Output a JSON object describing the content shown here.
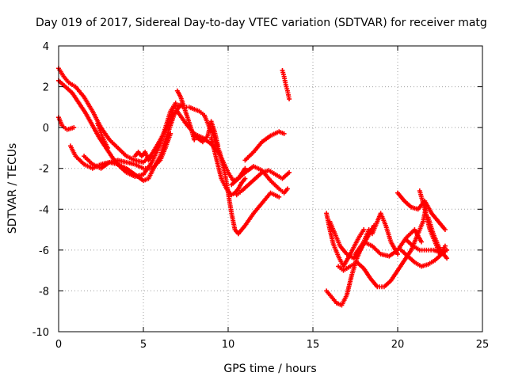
{
  "chart_data": {
    "type": "scatter",
    "title": "Day 019 of 2017, Sidereal Day-to-day VTEC variation (SDTVAR) for receiver matg",
    "xlabel": "GPS time / hours",
    "ylabel": "SDTVAR / TECUs",
    "xlim": [
      0,
      25
    ],
    "ylim": [
      -10,
      4
    ],
    "xticks": [
      "0",
      "5",
      "10",
      "15",
      "20",
      "25"
    ],
    "yticks": [
      "4",
      "2",
      "0",
      "-2",
      "-4",
      "-6",
      "-8",
      "-10"
    ],
    "grid": true,
    "marker": "plus",
    "color": "#ff0000",
    "series": [
      {
        "x": [
          0.0,
          0.3,
          0.6,
          1.0,
          1.5,
          2.0,
          2.5,
          3.0,
          3.5,
          4.0,
          4.5,
          5.0,
          5.5,
          6.0,
          6.5,
          6.8,
          7.0
        ],
        "y": [
          2.9,
          2.5,
          2.2,
          2.0,
          1.5,
          0.8,
          0.0,
          -0.6,
          -1.0,
          -1.4,
          -1.6,
          -1.7,
          -1.3,
          -0.6,
          0.2,
          1.0,
          1.1
        ]
      },
      {
        "x": [
          0.0,
          0.4,
          0.8,
          1.2,
          1.6,
          2.0,
          2.4,
          2.8,
          3.2,
          3.6,
          4.0,
          4.5,
          5.0,
          5.5,
          6.0,
          6.3,
          6.6,
          6.9
        ],
        "y": [
          2.3,
          2.0,
          1.7,
          1.2,
          0.7,
          0.1,
          -0.5,
          -1.0,
          -1.5,
          -1.9,
          -2.2,
          -2.4,
          -2.3,
          -1.7,
          -0.8,
          0.0,
          0.8,
          1.2
        ]
      },
      {
        "x": [
          0.0,
          0.2,
          0.5,
          0.9
        ],
        "y": [
          0.5,
          0.1,
          -0.1,
          0.0
        ]
      },
      {
        "x": [
          0.7,
          1.0,
          1.5,
          2.0,
          2.5,
          3.0,
          3.5,
          4.0,
          4.5,
          5.0,
          5.3,
          5.6,
          6.0,
          6.3,
          6.6,
          6.8,
          7.0,
          7.2
        ],
        "y": [
          -0.9,
          -1.4,
          -1.8,
          -2.0,
          -1.8,
          -1.7,
          -1.8,
          -2.0,
          -2.3,
          -2.6,
          -2.5,
          -2.0,
          -1.4,
          -0.6,
          0.1,
          0.6,
          0.9,
          1.1
        ]
      },
      {
        "x": [
          1.5,
          2.0,
          2.5,
          3.0,
          3.5,
          4.0,
          4.5,
          5.0,
          5.5,
          6.0,
          6.3,
          6.6
        ],
        "y": [
          -1.4,
          -1.8,
          -2.0,
          -1.7,
          -1.6,
          -1.7,
          -1.8,
          -2.0,
          -2.0,
          -1.6,
          -1.0,
          -0.3
        ]
      },
      {
        "x": [
          2.3,
          2.6,
          2.9
        ],
        "y": [
          0.2,
          -0.5,
          -1.0
        ]
      },
      {
        "x": [
          4.5,
          4.7,
          4.9,
          5.1,
          5.3,
          5.5
        ],
        "y": [
          -1.4,
          -1.2,
          -1.4,
          -1.2,
          -1.6,
          -1.4
        ]
      },
      {
        "x": [
          7.0,
          7.5,
          8.0,
          8.5,
          9.0,
          9.5,
          10.0,
          10.3,
          10.6,
          11.0
        ],
        "y": [
          0.8,
          0.2,
          -0.3,
          -0.5,
          -0.8,
          -1.3,
          -2.2,
          -2.6,
          -2.5,
          -2.0
        ]
      },
      {
        "x": [
          7.1,
          7.4,
          7.7,
          8.0,
          8.3,
          8.6,
          8.9,
          9.2
        ],
        "y": [
          1.1,
          1.0,
          1.0,
          0.9,
          0.8,
          0.6,
          0.0,
          -0.5
        ]
      },
      {
        "x": [
          7.0,
          7.2,
          7.4,
          7.6,
          7.8,
          8.0
        ],
        "y": [
          1.8,
          1.5,
          1.0,
          0.5,
          0.0,
          -0.6
        ]
      },
      {
        "x": [
          8.0,
          8.5,
          8.8,
          9.0,
          9.2,
          9.4
        ],
        "y": [
          -0.4,
          -0.7,
          -0.4,
          0.3,
          -0.2,
          -0.9
        ]
      },
      {
        "x": [
          9.0,
          9.3,
          9.6,
          9.9,
          10.2,
          10.4,
          10.6,
          10.8,
          11.0
        ],
        "y": [
          -0.5,
          -1.5,
          -2.5,
          -3.0,
          -3.3,
          -3.2,
          -3.0,
          -2.7,
          -2.5
        ]
      },
      {
        "x": [
          9.2,
          9.5,
          9.8,
          10.0,
          10.2,
          10.4,
          10.6
        ],
        "y": [
          -0.6,
          -1.2,
          -2.2,
          -3.2,
          -4.2,
          -5.0,
          -5.2
        ]
      },
      {
        "x": [
          10.6,
          11.0,
          11.5,
          12.0,
          12.5,
          13.0
        ],
        "y": [
          -5.2,
          -4.8,
          -4.2,
          -3.7,
          -3.2,
          -3.4
        ]
      },
      {
        "x": [
          10.2,
          10.6,
          11.0,
          11.5,
          12.0,
          12.5,
          13.0,
          13.3,
          13.5
        ],
        "y": [
          -2.8,
          -2.5,
          -2.2,
          -1.9,
          -2.1,
          -2.6,
          -3.0,
          -3.2,
          -3.0
        ]
      },
      {
        "x": [
          10.5,
          10.8,
          11.2,
          11.6,
          12.0,
          12.4,
          12.8,
          13.2,
          13.6
        ],
        "y": [
          -3.3,
          -3.1,
          -2.8,
          -2.5,
          -2.2,
          -2.1,
          -2.3,
          -2.5,
          -2.2
        ]
      },
      {
        "x": [
          11.0,
          11.5,
          12.0,
          12.5,
          13.0,
          13.3
        ],
        "y": [
          -1.6,
          -1.2,
          -0.7,
          -0.4,
          -0.2,
          -0.3
        ]
      },
      {
        "x": [
          13.2,
          13.3,
          13.4,
          13.5,
          13.6
        ],
        "y": [
          2.8,
          2.5,
          2.1,
          1.8,
          1.4
        ]
      },
      {
        "x": [
          15.8,
          16.0,
          16.2,
          16.5,
          16.8,
          17.2,
          17.7,
          18.0
        ],
        "y": [
          -4.2,
          -5.0,
          -5.7,
          -6.3,
          -6.8,
          -6.2,
          -5.4,
          -5.0
        ]
      },
      {
        "x": [
          15.8,
          16.1,
          16.4,
          16.7,
          17.0,
          17.3,
          17.6,
          18.0,
          18.3
        ],
        "y": [
          -8.0,
          -8.3,
          -8.6,
          -8.7,
          -8.2,
          -7.2,
          -6.4,
          -5.6,
          -5.0
        ]
      },
      {
        "x": [
          16.0,
          16.3,
          16.6,
          17.0,
          17.4,
          17.8,
          18.2,
          18.6
        ],
        "y": [
          -4.6,
          -5.2,
          -5.8,
          -6.2,
          -6.4,
          -6.0,
          -5.4,
          -4.8
        ]
      },
      {
        "x": [
          16.5,
          16.8,
          17.2,
          17.6,
          18.0,
          18.4,
          18.8,
          19.2,
          19.6,
          20.0,
          20.4,
          20.8,
          21.2,
          21.5,
          21.7
        ],
        "y": [
          -6.8,
          -7.0,
          -6.8,
          -6.6,
          -6.9,
          -7.4,
          -7.8,
          -7.8,
          -7.5,
          -7.0,
          -6.5,
          -6.0,
          -5.2,
          -4.6,
          -3.8
        ]
      },
      {
        "x": [
          17.5,
          18.0,
          18.5,
          19.0,
          19.5,
          20.0,
          20.5,
          21.0,
          21.4
        ],
        "y": [
          -6.2,
          -5.6,
          -5.8,
          -6.2,
          -6.3,
          -6.0,
          -5.4,
          -5.0,
          -5.6
        ]
      },
      {
        "x": [
          18.5,
          18.8,
          19.0,
          19.3,
          19.6,
          20.0
        ],
        "y": [
          -5.2,
          -4.6,
          -4.2,
          -4.8,
          -5.6,
          -6.2
        ]
      },
      {
        "x": [
          20.0,
          20.4,
          20.8,
          21.2,
          21.6,
          22.0,
          22.4,
          22.8
        ],
        "y": [
          -3.2,
          -3.6,
          -3.9,
          -4.0,
          -3.6,
          -4.2,
          -4.6,
          -5.0
        ]
      },
      {
        "x": [
          20.2,
          20.6,
          21.0,
          21.4,
          21.8,
          22.2,
          22.6,
          22.9
        ],
        "y": [
          -6.0,
          -6.3,
          -6.6,
          -6.8,
          -6.7,
          -6.5,
          -6.2,
          -6.0
        ]
      },
      {
        "x": [
          20.5,
          20.9,
          21.3,
          21.7,
          22.1,
          22.5,
          22.9
        ],
        "y": [
          -5.5,
          -5.8,
          -6.0,
          -6.0,
          -6.0,
          -6.1,
          -6.0
        ]
      },
      {
        "x": [
          21.3,
          21.6,
          21.9,
          22.2,
          22.5,
          22.8
        ],
        "y": [
          -3.1,
          -4.0,
          -5.0,
          -5.6,
          -6.2,
          -5.8
        ]
      },
      {
        "x": [
          21.8,
          22.1,
          22.4,
          22.7,
          22.9
        ],
        "y": [
          -4.4,
          -5.2,
          -5.8,
          -6.2,
          -6.4
        ]
      }
    ]
  }
}
